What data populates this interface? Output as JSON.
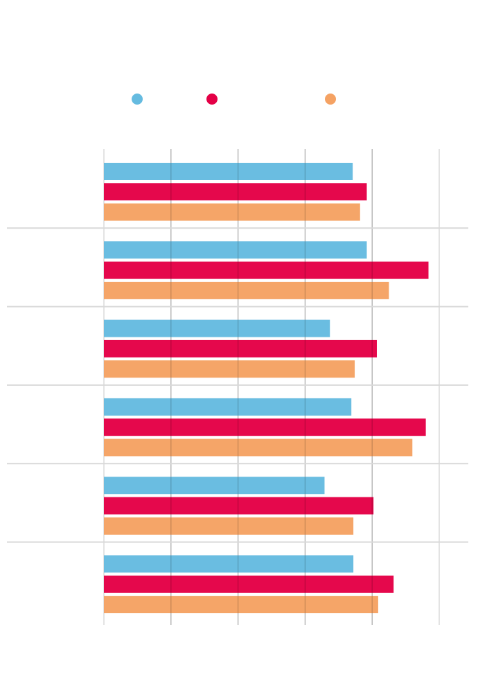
{
  "chart_data": {
    "type": "bar",
    "orientation": "horizontal",
    "title": "",
    "xlabel": "",
    "ylabel": "",
    "xlim": [
      0,
      5
    ],
    "grid": true,
    "legend_position": "top",
    "categories": [
      "",
      "",
      "",
      "",
      "",
      ""
    ],
    "series": [
      {
        "color": "#65bbe0",
        "values": [
          3.71,
          3.92,
          3.37,
          3.69,
          3.29,
          3.72
        ]
      },
      {
        "color": "#e40046",
        "values": [
          3.92,
          4.84,
          4.07,
          4.8,
          4.02,
          4.32
        ]
      },
      {
        "color": "#f5a263",
        "values": [
          3.82,
          4.25,
          3.74,
          4.6,
          3.72,
          4.09
        ]
      }
    ]
  }
}
